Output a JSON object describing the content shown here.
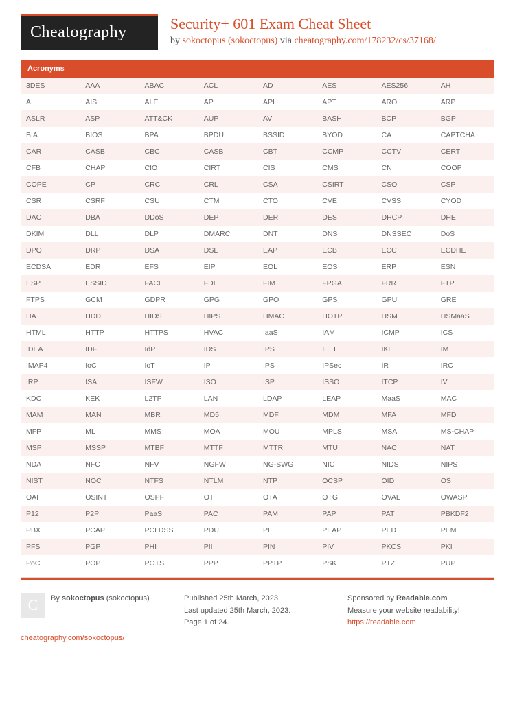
{
  "logo": {
    "text": "Cheatography"
  },
  "header": {
    "title": "Security+ 601 Exam Cheat Sheet",
    "by_prefix": "by ",
    "author_link": "sokoctopus (sokoctopus)",
    "via_text": " via ",
    "url_link": "cheatography.com/178232/cs/37168/"
  },
  "section": {
    "title": "Acronyms"
  },
  "table": {
    "columns": 8,
    "row_bg_odd": "#fbf0ee",
    "row_bg_even": "#ffffff",
    "header_bg": "#d94d2b",
    "rows": [
      [
        "3DES",
        "AAA",
        "ABAC",
        "ACL",
        "AD",
        "AES",
        "AES256",
        "AH"
      ],
      [
        "AI",
        "AIS",
        "ALE",
        "AP",
        "API",
        "APT",
        "ARO",
        "ARP"
      ],
      [
        "ASLR",
        "ASP",
        "ATT&CK",
        "AUP",
        "AV",
        "BASH",
        "BCP",
        "BGP"
      ],
      [
        "BIA",
        "BIOS",
        "BPA",
        "BPDU",
        "BSSID",
        "BYOD",
        "CA",
        "CAPTCHA"
      ],
      [
        "CAR",
        "CASB",
        "CBC",
        "CASB",
        "CBT",
        "CCMP",
        "CCTV",
        "CERT"
      ],
      [
        "CFB",
        "CHAP",
        "CIO",
        "CIRT",
        "CIS",
        "CMS",
        "CN",
        "COOP"
      ],
      [
        "COPE",
        "CP",
        "CRC",
        "CRL",
        "CSA",
        "CSIRT",
        "CSO",
        "CSP"
      ],
      [
        "CSR",
        "CSRF",
        "CSU",
        "CTM",
        "CTO",
        "CVE",
        "CVSS",
        "CYOD"
      ],
      [
        "DAC",
        "DBA",
        "DDoS",
        "DEP",
        "DER",
        "DES",
        "DHCP",
        "DHE"
      ],
      [
        "DKIM",
        "DLL",
        "DLP",
        "DMARC",
        "DNT",
        "DNS",
        "DNSSEC",
        "DoS"
      ],
      [
        "DPO",
        "DRP",
        "DSA",
        "DSL",
        "EAP",
        "ECB",
        "ECC",
        "ECDHE"
      ],
      [
        "ECDSA",
        "EDR",
        "EFS",
        "EIP",
        "EOL",
        "EOS",
        "ERP",
        "ESN"
      ],
      [
        "ESP",
        "ESSID",
        "FACL",
        "FDE",
        "FIM",
        "FPGA",
        "FRR",
        "FTP"
      ],
      [
        "FTPS",
        "GCM",
        "GDPR",
        "GPG",
        "GPO",
        "GPS",
        "GPU",
        "GRE"
      ],
      [
        "HA",
        "HDD",
        "HIDS",
        "HIPS",
        "HMAC",
        "HOTP",
        "HSM",
        "HSMaaS"
      ],
      [
        "HTML",
        "HTTP",
        "HTTPS",
        "HVAC",
        "IaaS",
        "IAM",
        "ICMP",
        "ICS"
      ],
      [
        "IDEA",
        "IDF",
        "IdP",
        "IDS",
        "IPS",
        "IEEE",
        "IKE",
        "IM"
      ],
      [
        "IMAP4",
        "IoC",
        "IoT",
        "IP",
        "IPS",
        "IPSec",
        "IR",
        "IRC"
      ],
      [
        "IRP",
        "ISA",
        "ISFW",
        "ISO",
        "ISP",
        "ISSO",
        "ITCP",
        "IV"
      ],
      [
        "KDC",
        "KEK",
        "L2TP",
        "LAN",
        "LDAP",
        "LEAP",
        "MaaS",
        "MAC"
      ],
      [
        "MAM",
        "MAN",
        "MBR",
        "MD5",
        "MDF",
        "MDM",
        "MFA",
        "MFD"
      ],
      [
        "MFP",
        "ML",
        "MMS",
        "MOA",
        "MOU",
        "MPLS",
        "MSA",
        "MS-CHAP"
      ],
      [
        "MSP",
        "MSSP",
        "MTBF",
        "MTTF",
        "MTTR",
        "MTU",
        "NAC",
        "NAT"
      ],
      [
        "NDA",
        "NFC",
        "NFV",
        "NGFW",
        "NG-SWG",
        "NIC",
        "NIDS",
        "NIPS"
      ],
      [
        "NIST",
        "NOC",
        "NTFS",
        "NTLM",
        "NTP",
        "OCSP",
        "OID",
        "OS"
      ],
      [
        "OAI",
        "OSINT",
        "OSPF",
        "OT",
        "OTA",
        "OTG",
        "OVAL",
        "OWASP"
      ],
      [
        "P12",
        "P2P",
        "PaaS",
        "PAC",
        "PAM",
        "PAP",
        "PAT",
        "PBKDF2"
      ],
      [
        "PBX",
        "PCAP",
        "PCI DSS",
        "PDU",
        "PE",
        "PEAP",
        "PED",
        "PEM"
      ],
      [
        "PFS",
        "PGP",
        "PHI",
        "PII",
        "PIN",
        "PIV",
        "PKCS",
        "PKI"
      ],
      [
        "PoC",
        "POP",
        "POTS",
        "PPP",
        "PPTP",
        "PSK",
        "PTZ",
        "PUP"
      ]
    ]
  },
  "footer": {
    "avatar_letter": "C",
    "by_label": "By ",
    "author_bold": "sokoctopus",
    "author_paren": " (sokoctopus)",
    "profile_url": "cheatography.com/sokoctopus/",
    "published": "Published 25th March, 2023.",
    "updated": "Last updated 25th March, 2023.",
    "page": "Page 1 of 24.",
    "sponsor_prefix": "Sponsored by ",
    "sponsor_name": "Readable.com",
    "sponsor_tag": "Measure your website readability!",
    "sponsor_url": "https://readable.com"
  }
}
